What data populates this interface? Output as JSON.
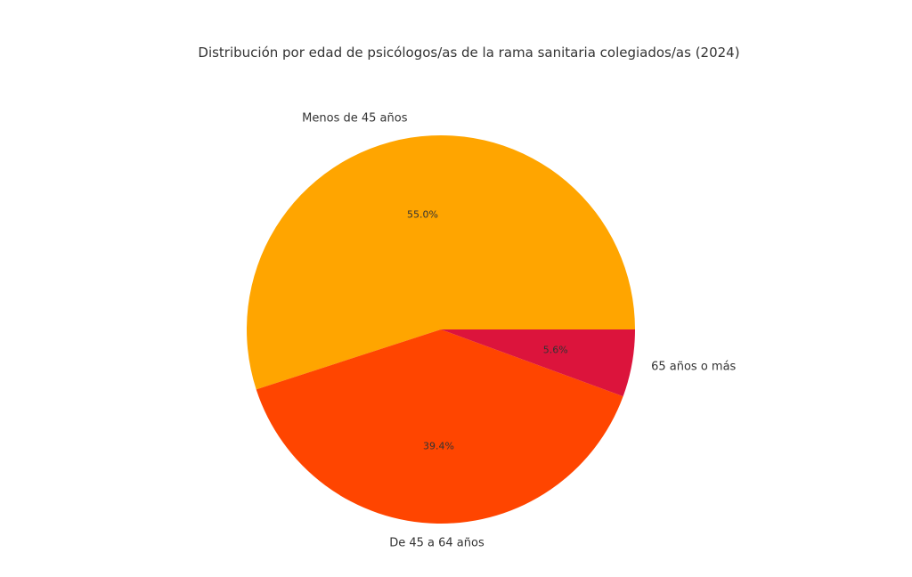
{
  "chart_data": {
    "type": "pie",
    "title": "Distribución por edad de psicólogos/as de la rama sanitaria colegiados/as (2024)",
    "slices": [
      {
        "label": "Menos de 45 años",
        "value": 55.0,
        "pct_label": "55.0%",
        "color": "#FFA500"
      },
      {
        "label": "De 45 a 64 años",
        "value": 39.4,
        "pct_label": "39.4%",
        "color": "#FF4500"
      },
      {
        "label": "65 años o más",
        "value": 5.6,
        "pct_label": "5.6%",
        "color": "#DC143C"
      }
    ],
    "start_angle_deg": 0,
    "direction": "counterclockwise",
    "legend": "none"
  }
}
